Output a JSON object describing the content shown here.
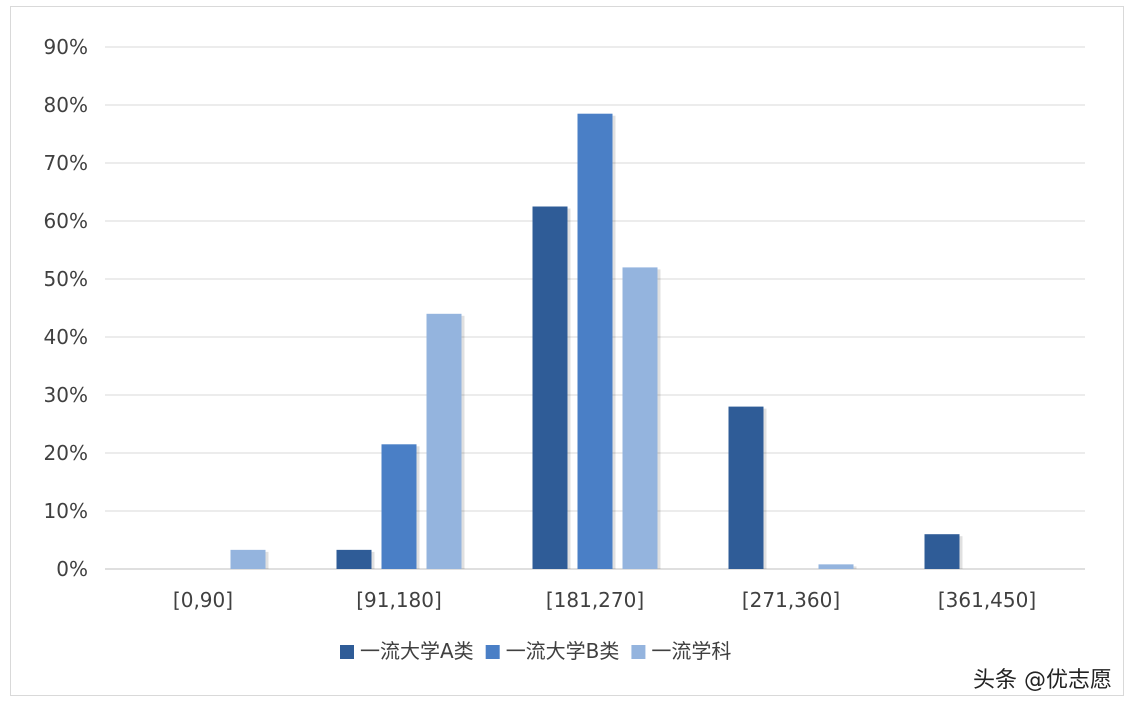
{
  "chart_data": {
    "type": "bar",
    "categories": [
      "[0,90]",
      "[91,180]",
      "[181,270]",
      "[271,360]",
      "[361,450]"
    ],
    "series": [
      {
        "name": "一流大学A类",
        "values": [
          0,
          3.3,
          62.5,
          28,
          6
        ],
        "color": "#2f5c97"
      },
      {
        "name": "一流大学B类",
        "values": [
          0,
          21.5,
          78.5,
          0,
          0
        ],
        "color": "#4a7fc6"
      },
      {
        "name": "一流学科",
        "values": [
          3.3,
          44,
          52,
          0.8,
          0
        ],
        "color": "#94b4de"
      }
    ],
    "ylim": [
      0,
      90
    ],
    "yticks": [
      "0%",
      "10%",
      "20%",
      "30%",
      "40%",
      "50%",
      "60%",
      "70%",
      "80%",
      "90%"
    ],
    "grid": true,
    "legend_position": "bottom"
  },
  "watermark_text": "头条 @优志愿"
}
